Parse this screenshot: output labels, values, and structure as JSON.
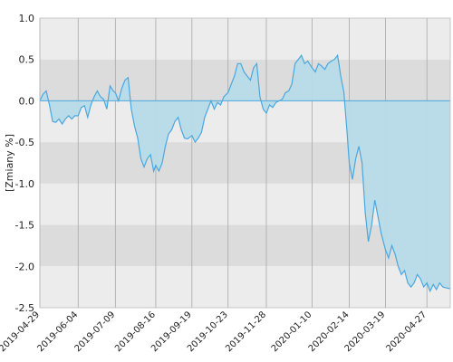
{
  "chart_data": {
    "type": "area",
    "ylabel": "[Zmiany %]",
    "ylim": [
      -2.5,
      1.0
    ],
    "xlim": [
      "2019-04-29",
      "2020-05-19"
    ],
    "yticks": [
      "1.0",
      "0.5",
      "0.0",
      "-0.5",
      "-1.0",
      "-1.5",
      "-2.0",
      "-2.5"
    ],
    "xticks": [
      "2019-04-29",
      "2019-06-04",
      "2019-07-09",
      "2019-08-16",
      "2019-09-19",
      "2019-10-23",
      "2019-11-28",
      "2020-01-10",
      "2020-02-14",
      "2020-03-19",
      "2020-04-27"
    ],
    "grid": true,
    "banded_background": true,
    "colors": {
      "line": "#4aa8e0",
      "fill_positive": "#b6dbe8",
      "fill_negative": "#b6dbe8",
      "band_light": "#ececec",
      "band_dark": "#dcdcdc",
      "grid_vertical": "#a8a8a8"
    },
    "series": [
      {
        "x": [
          "2019-04-29",
          "2019-05-02",
          "2019-05-05",
          "2019-05-08",
          "2019-05-11",
          "2019-05-14",
          "2019-05-17",
          "2019-05-20",
          "2019-05-23",
          "2019-05-26",
          "2019-05-29",
          "2019-06-01",
          "2019-06-04",
          "2019-06-07",
          "2019-06-10",
          "2019-06-13",
          "2019-06-16",
          "2019-06-19",
          "2019-06-22",
          "2019-06-25",
          "2019-06-28",
          "2019-07-01",
          "2019-07-04",
          "2019-07-07",
          "2019-07-09",
          "2019-07-12",
          "2019-07-15",
          "2019-07-18",
          "2019-07-21",
          "2019-07-24",
          "2019-07-27",
          "2019-07-30",
          "2019-08-02",
          "2019-08-05",
          "2019-08-08",
          "2019-08-11",
          "2019-08-14",
          "2019-08-16",
          "2019-08-19",
          "2019-08-22",
          "2019-08-25",
          "2019-08-28",
          "2019-08-31",
          "2019-09-03",
          "2019-09-06",
          "2019-09-09",
          "2019-09-12",
          "2019-09-15",
          "2019-09-19",
          "2019-09-22",
          "2019-09-25",
          "2019-09-28",
          "2019-10-01",
          "2019-10-04",
          "2019-10-07",
          "2019-10-10",
          "2019-10-13",
          "2019-10-16",
          "2019-10-19",
          "2019-10-23",
          "2019-10-26",
          "2019-10-29",
          "2019-11-01",
          "2019-11-04",
          "2019-11-07",
          "2019-11-10",
          "2019-11-13",
          "2019-11-16",
          "2019-11-19",
          "2019-11-22",
          "2019-11-25",
          "2019-11-28",
          "2019-12-01",
          "2019-12-04",
          "2019-12-07",
          "2019-12-10",
          "2019-12-13",
          "2019-12-16",
          "2019-12-19",
          "2019-12-22",
          "2019-12-25",
          "2019-12-28",
          "2019-12-31",
          "2020-01-03",
          "2020-01-06",
          "2020-01-10",
          "2020-01-13",
          "2020-01-16",
          "2020-01-19",
          "2020-01-22",
          "2020-01-25",
          "2020-01-28",
          "2020-01-31",
          "2020-02-03",
          "2020-02-06",
          "2020-02-09",
          "2020-02-12",
          "2020-02-14",
          "2020-02-17",
          "2020-02-20",
          "2020-02-23",
          "2020-02-26",
          "2020-02-29",
          "2020-03-03",
          "2020-03-06",
          "2020-03-09",
          "2020-03-12",
          "2020-03-15",
          "2020-03-19",
          "2020-03-22",
          "2020-03-25",
          "2020-03-28",
          "2020-03-31",
          "2020-04-03",
          "2020-04-06",
          "2020-04-09",
          "2020-04-12",
          "2020-04-15",
          "2020-04-18",
          "2020-04-21",
          "2020-04-24",
          "2020-04-27",
          "2020-04-30",
          "2020-05-03",
          "2020-05-06",
          "2020-05-09",
          "2020-05-12",
          "2020-05-15",
          "2020-05-19"
        ],
        "y": [
          0.0,
          0.08,
          0.12,
          -0.05,
          -0.25,
          -0.26,
          -0.22,
          -0.28,
          -0.22,
          -0.18,
          -0.22,
          -0.18,
          -0.18,
          -0.08,
          -0.06,
          -0.2,
          -0.05,
          0.05,
          0.12,
          0.05,
          0.02,
          -0.1,
          0.18,
          0.12,
          0.1,
          0.0,
          0.15,
          0.25,
          0.28,
          -0.1,
          -0.3,
          -0.45,
          -0.7,
          -0.8,
          -0.7,
          -0.65,
          -0.85,
          -0.78,
          -0.85,
          -0.75,
          -0.55,
          -0.4,
          -0.35,
          -0.25,
          -0.2,
          -0.35,
          -0.45,
          -0.46,
          -0.42,
          -0.5,
          -0.45,
          -0.38,
          -0.2,
          -0.1,
          0.0,
          -0.1,
          -0.02,
          -0.05,
          0.05,
          0.1,
          0.2,
          0.3,
          0.45,
          0.45,
          0.35,
          0.3,
          0.25,
          0.4,
          0.45,
          0.05,
          -0.1,
          -0.15,
          -0.05,
          -0.08,
          -0.02,
          0.0,
          0.02,
          0.1,
          0.12,
          0.2,
          0.45,
          0.5,
          0.55,
          0.45,
          0.48,
          0.4,
          0.35,
          0.45,
          0.42,
          0.38,
          0.45,
          0.48,
          0.5,
          0.55,
          0.3,
          0.1,
          -0.4,
          -0.75,
          -0.95,
          -0.7,
          -0.55,
          -0.75,
          -1.35,
          -1.7,
          -1.5,
          -1.2,
          -1.4,
          -1.6,
          -1.8,
          -1.9,
          -1.75,
          -1.85,
          -2.0,
          -2.1,
          -2.05,
          -2.2,
          -2.25,
          -2.2,
          -2.1,
          -2.15,
          -2.25,
          -2.2,
          -2.3,
          -2.22,
          -2.28,
          -2.2,
          -2.25,
          -2.26,
          -2.27
        ],
        "y_values_in_percent": true
      }
    ]
  }
}
